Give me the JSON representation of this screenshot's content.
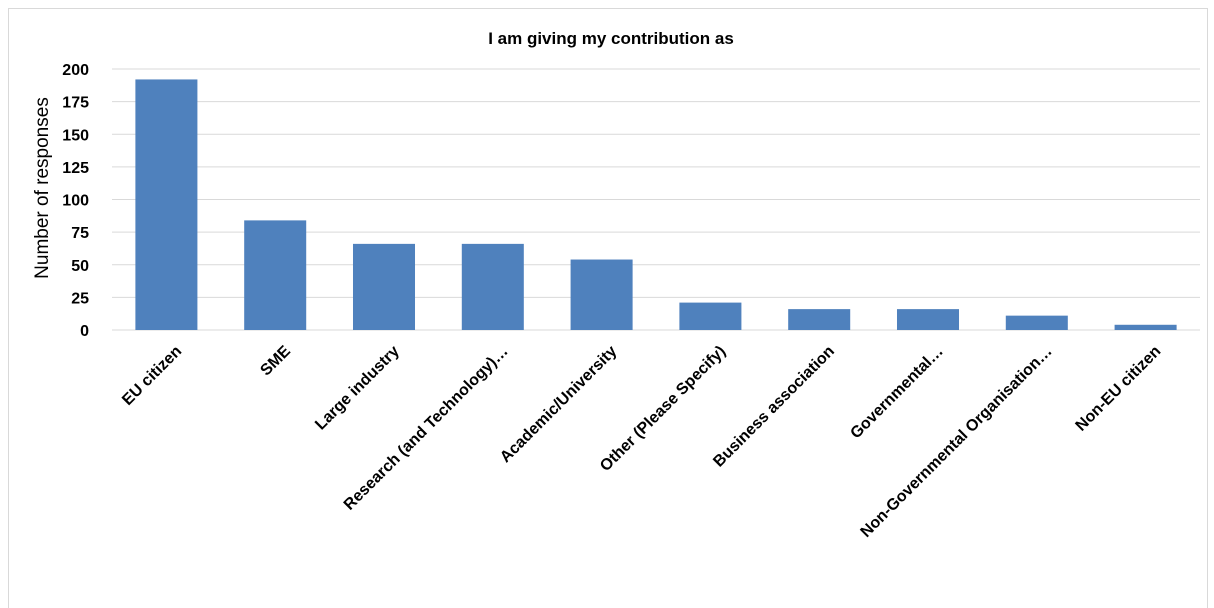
{
  "chart_data": {
    "type": "bar",
    "title": "I am giving my contribution as",
    "xlabel": "",
    "ylabel": "Number of responses",
    "categories": [
      "EU citizen",
      "SME",
      "Large industry",
      "Research (and Technology)…",
      "Academic/University",
      "Other (Please Specify)",
      "Business association",
      "Governmental…",
      "Non-Governmental Organisation…",
      "Non-EU citizen"
    ],
    "values": [
      192,
      84,
      66,
      66,
      54,
      21,
      16,
      16,
      11,
      4
    ],
    "ylim": [
      0,
      200
    ],
    "yticks": [
      "0",
      "25",
      "50",
      "75",
      "100",
      "125",
      "150",
      "175",
      "200"
    ],
    "ytick_values": [
      0,
      25,
      50,
      75,
      100,
      125,
      150,
      175,
      200
    ],
    "grid": true,
    "bar_color": "#4F81BD",
    "gridline_color": "#D9D9D9"
  }
}
